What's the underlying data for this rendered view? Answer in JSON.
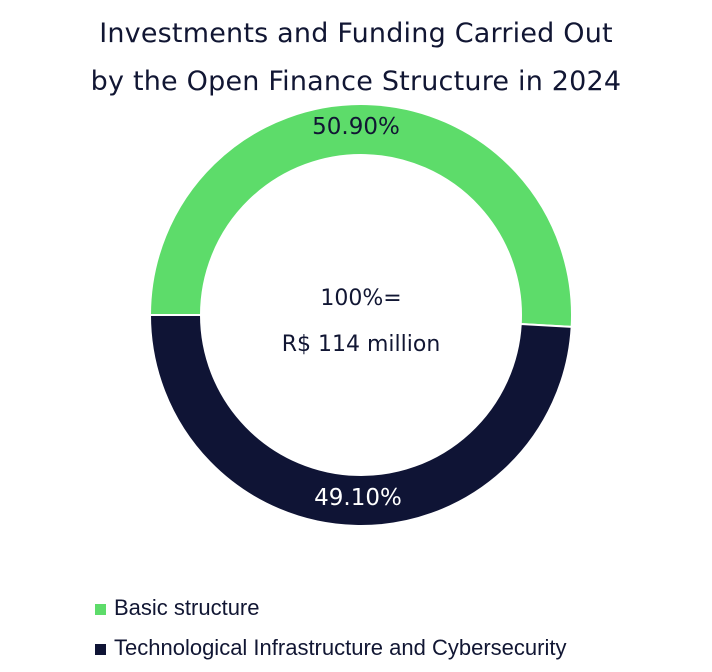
{
  "title": {
    "line1": "Investments and Funding Carried Out",
    "line2": "by the Open Finance Structure in 2024"
  },
  "center": {
    "line1": "100%=",
    "line2": "R$ 114 million"
  },
  "slices": [
    {
      "label": "Basic structure",
      "value_label": "50.90%",
      "color": "#5ddc6a",
      "text_color": "#111633"
    },
    {
      "label": "Technological Infrastructure and Cybersecurity",
      "value_label": "49.10%",
      "color": "#0f1435",
      "text_color": "#ffffff"
    }
  ],
  "legend": [
    {
      "label": "Basic structure",
      "color": "#5ddc6a"
    },
    {
      "label": "Technological Infrastructure and Cybersecurity",
      "color": "#0f1435"
    }
  ],
  "chart_data": {
    "type": "pie",
    "subtype": "donut",
    "title": "Investments and Funding Carried Out by the Open Finance Structure in 2024",
    "categories": [
      "Basic structure",
      "Technological Infrastructure and Cybersecurity"
    ],
    "values": [
      50.9,
      49.1
    ],
    "unit": "%",
    "total_label": "100%= R$ 114 million",
    "colors": [
      "#5ddc6a",
      "#0f1435"
    ],
    "legend_position": "bottom-left"
  }
}
